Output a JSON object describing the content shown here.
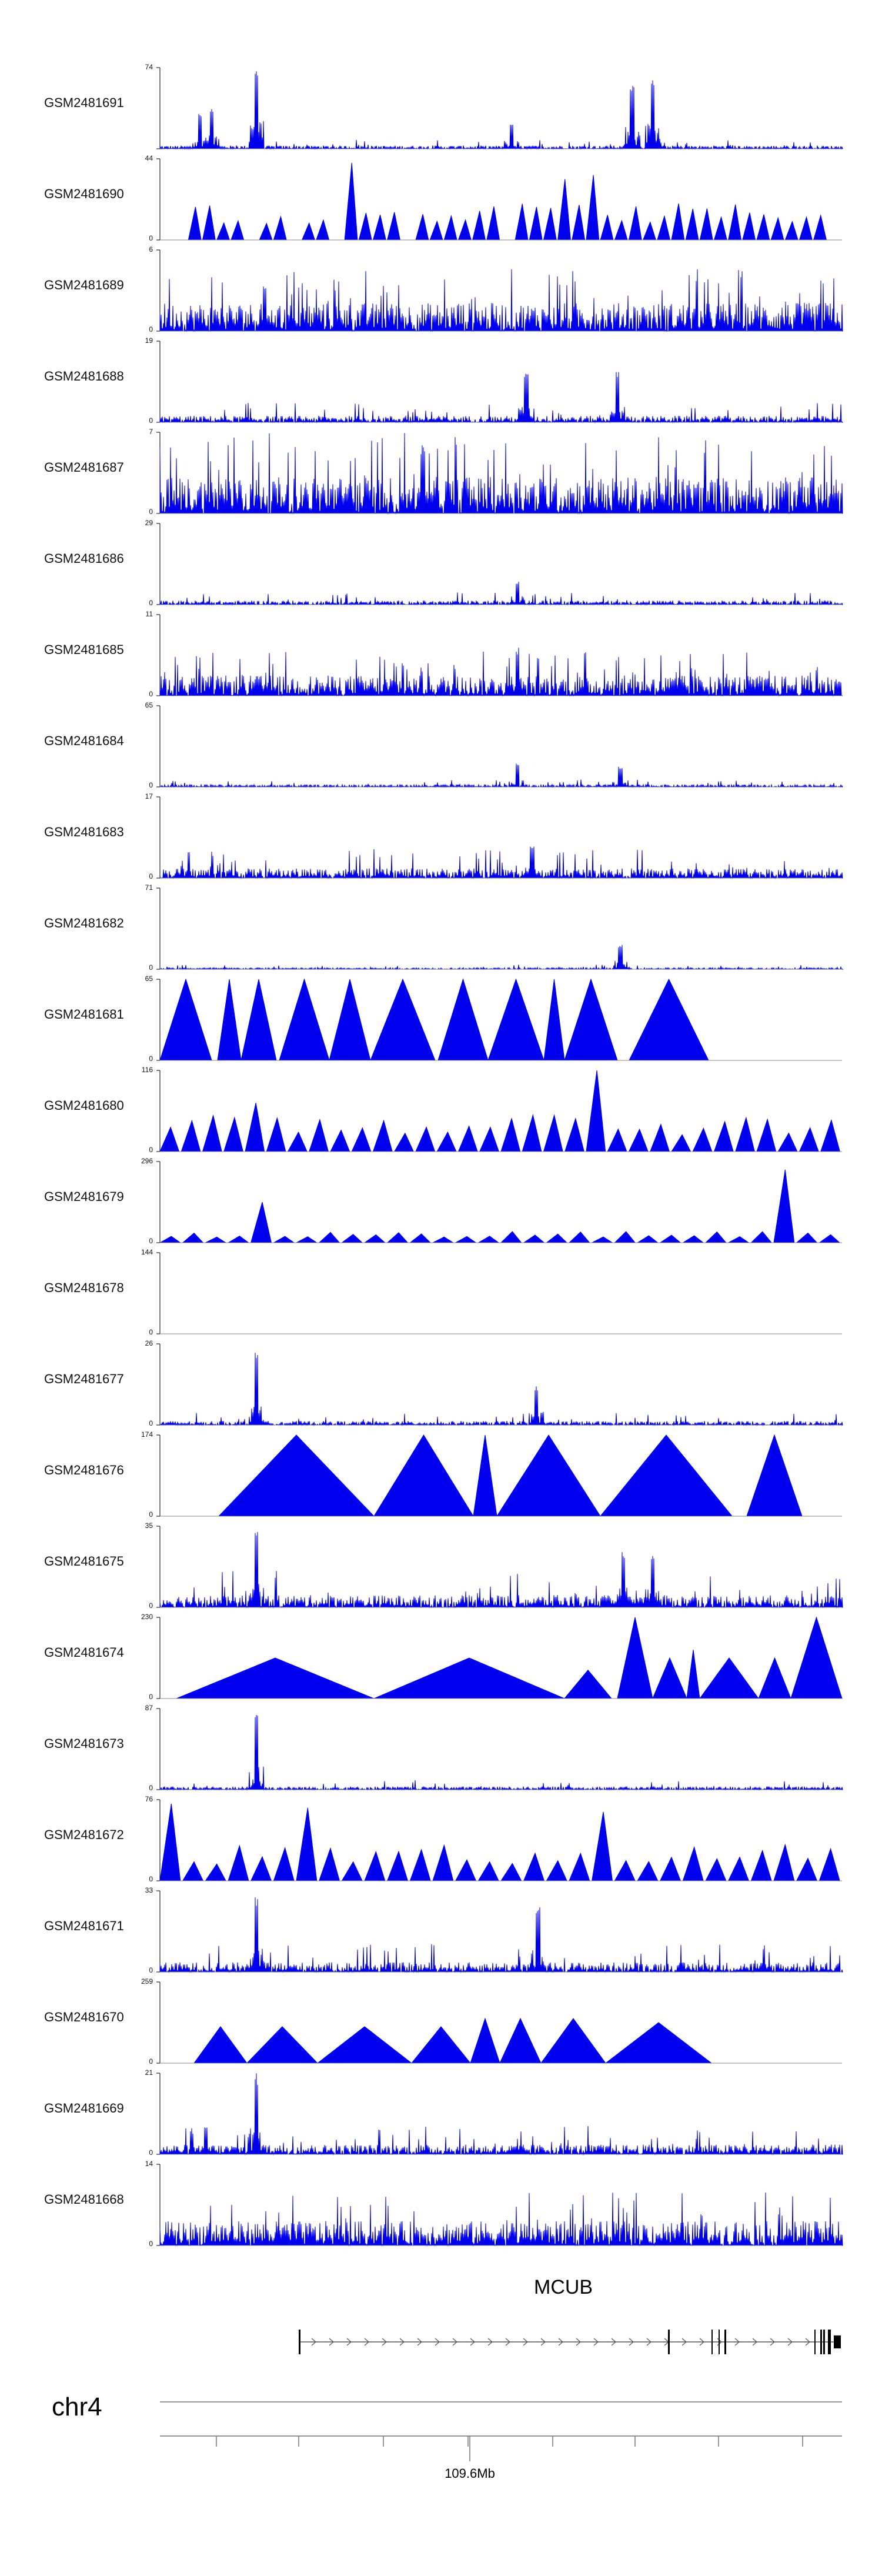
{
  "chart_data": {
    "type": "area",
    "title": "",
    "tracks": [
      {
        "name": "GSM2481691",
        "ymax": "74",
        "ymin": ""
      },
      {
        "name": "GSM2481690",
        "ymax": "44",
        "ymin": "0"
      },
      {
        "name": "GSM2481689",
        "ymax": "6",
        "ymin": "0"
      },
      {
        "name": "GSM2481688",
        "ymax": "19",
        "ymin": "0"
      },
      {
        "name": "GSM2481687",
        "ymax": "7",
        "ymin": "0"
      },
      {
        "name": "GSM2481686",
        "ymax": "29",
        "ymin": "0"
      },
      {
        "name": "GSM2481685",
        "ymax": "11",
        "ymin": "0"
      },
      {
        "name": "GSM2481684",
        "ymax": "65",
        "ymin": "0"
      },
      {
        "name": "GSM2481683",
        "ymax": "17",
        "ymin": "0"
      },
      {
        "name": "GSM2481682",
        "ymax": "71",
        "ymin": "0"
      },
      {
        "name": "GSM2481681",
        "ymax": "65",
        "ymin": "0"
      },
      {
        "name": "GSM2481680",
        "ymax": "116",
        "ymin": "0"
      },
      {
        "name": "GSM2481679",
        "ymax": "296",
        "ymin": "0"
      },
      {
        "name": "GSM2481678",
        "ymax": "144",
        "ymin": "0"
      },
      {
        "name": "GSM2481677",
        "ymax": "26",
        "ymin": "0"
      },
      {
        "name": "GSM2481676",
        "ymax": "174",
        "ymin": "0"
      },
      {
        "name": "GSM2481675",
        "ymax": "35",
        "ymin": "0"
      },
      {
        "name": "GSM2481674",
        "ymax": "230",
        "ymin": "0"
      },
      {
        "name": "GSM2481673",
        "ymax": "87",
        "ymin": "0"
      },
      {
        "name": "GSM2481672",
        "ymax": "76",
        "ymin": "0"
      },
      {
        "name": "GSM2481671",
        "ymax": "33",
        "ymin": "0"
      },
      {
        "name": "GSM2481670",
        "ymax": "259",
        "ymin": "0"
      },
      {
        "name": "GSM2481669",
        "ymax": "21",
        "ymin": "0"
      },
      {
        "name": "GSM2481668",
        "ymax": "14",
        "ymin": "0"
      }
    ],
    "gene": "MCUB",
    "chromosome": "chr4",
    "position_label": "109.6Mb",
    "color": "#0000ee"
  }
}
